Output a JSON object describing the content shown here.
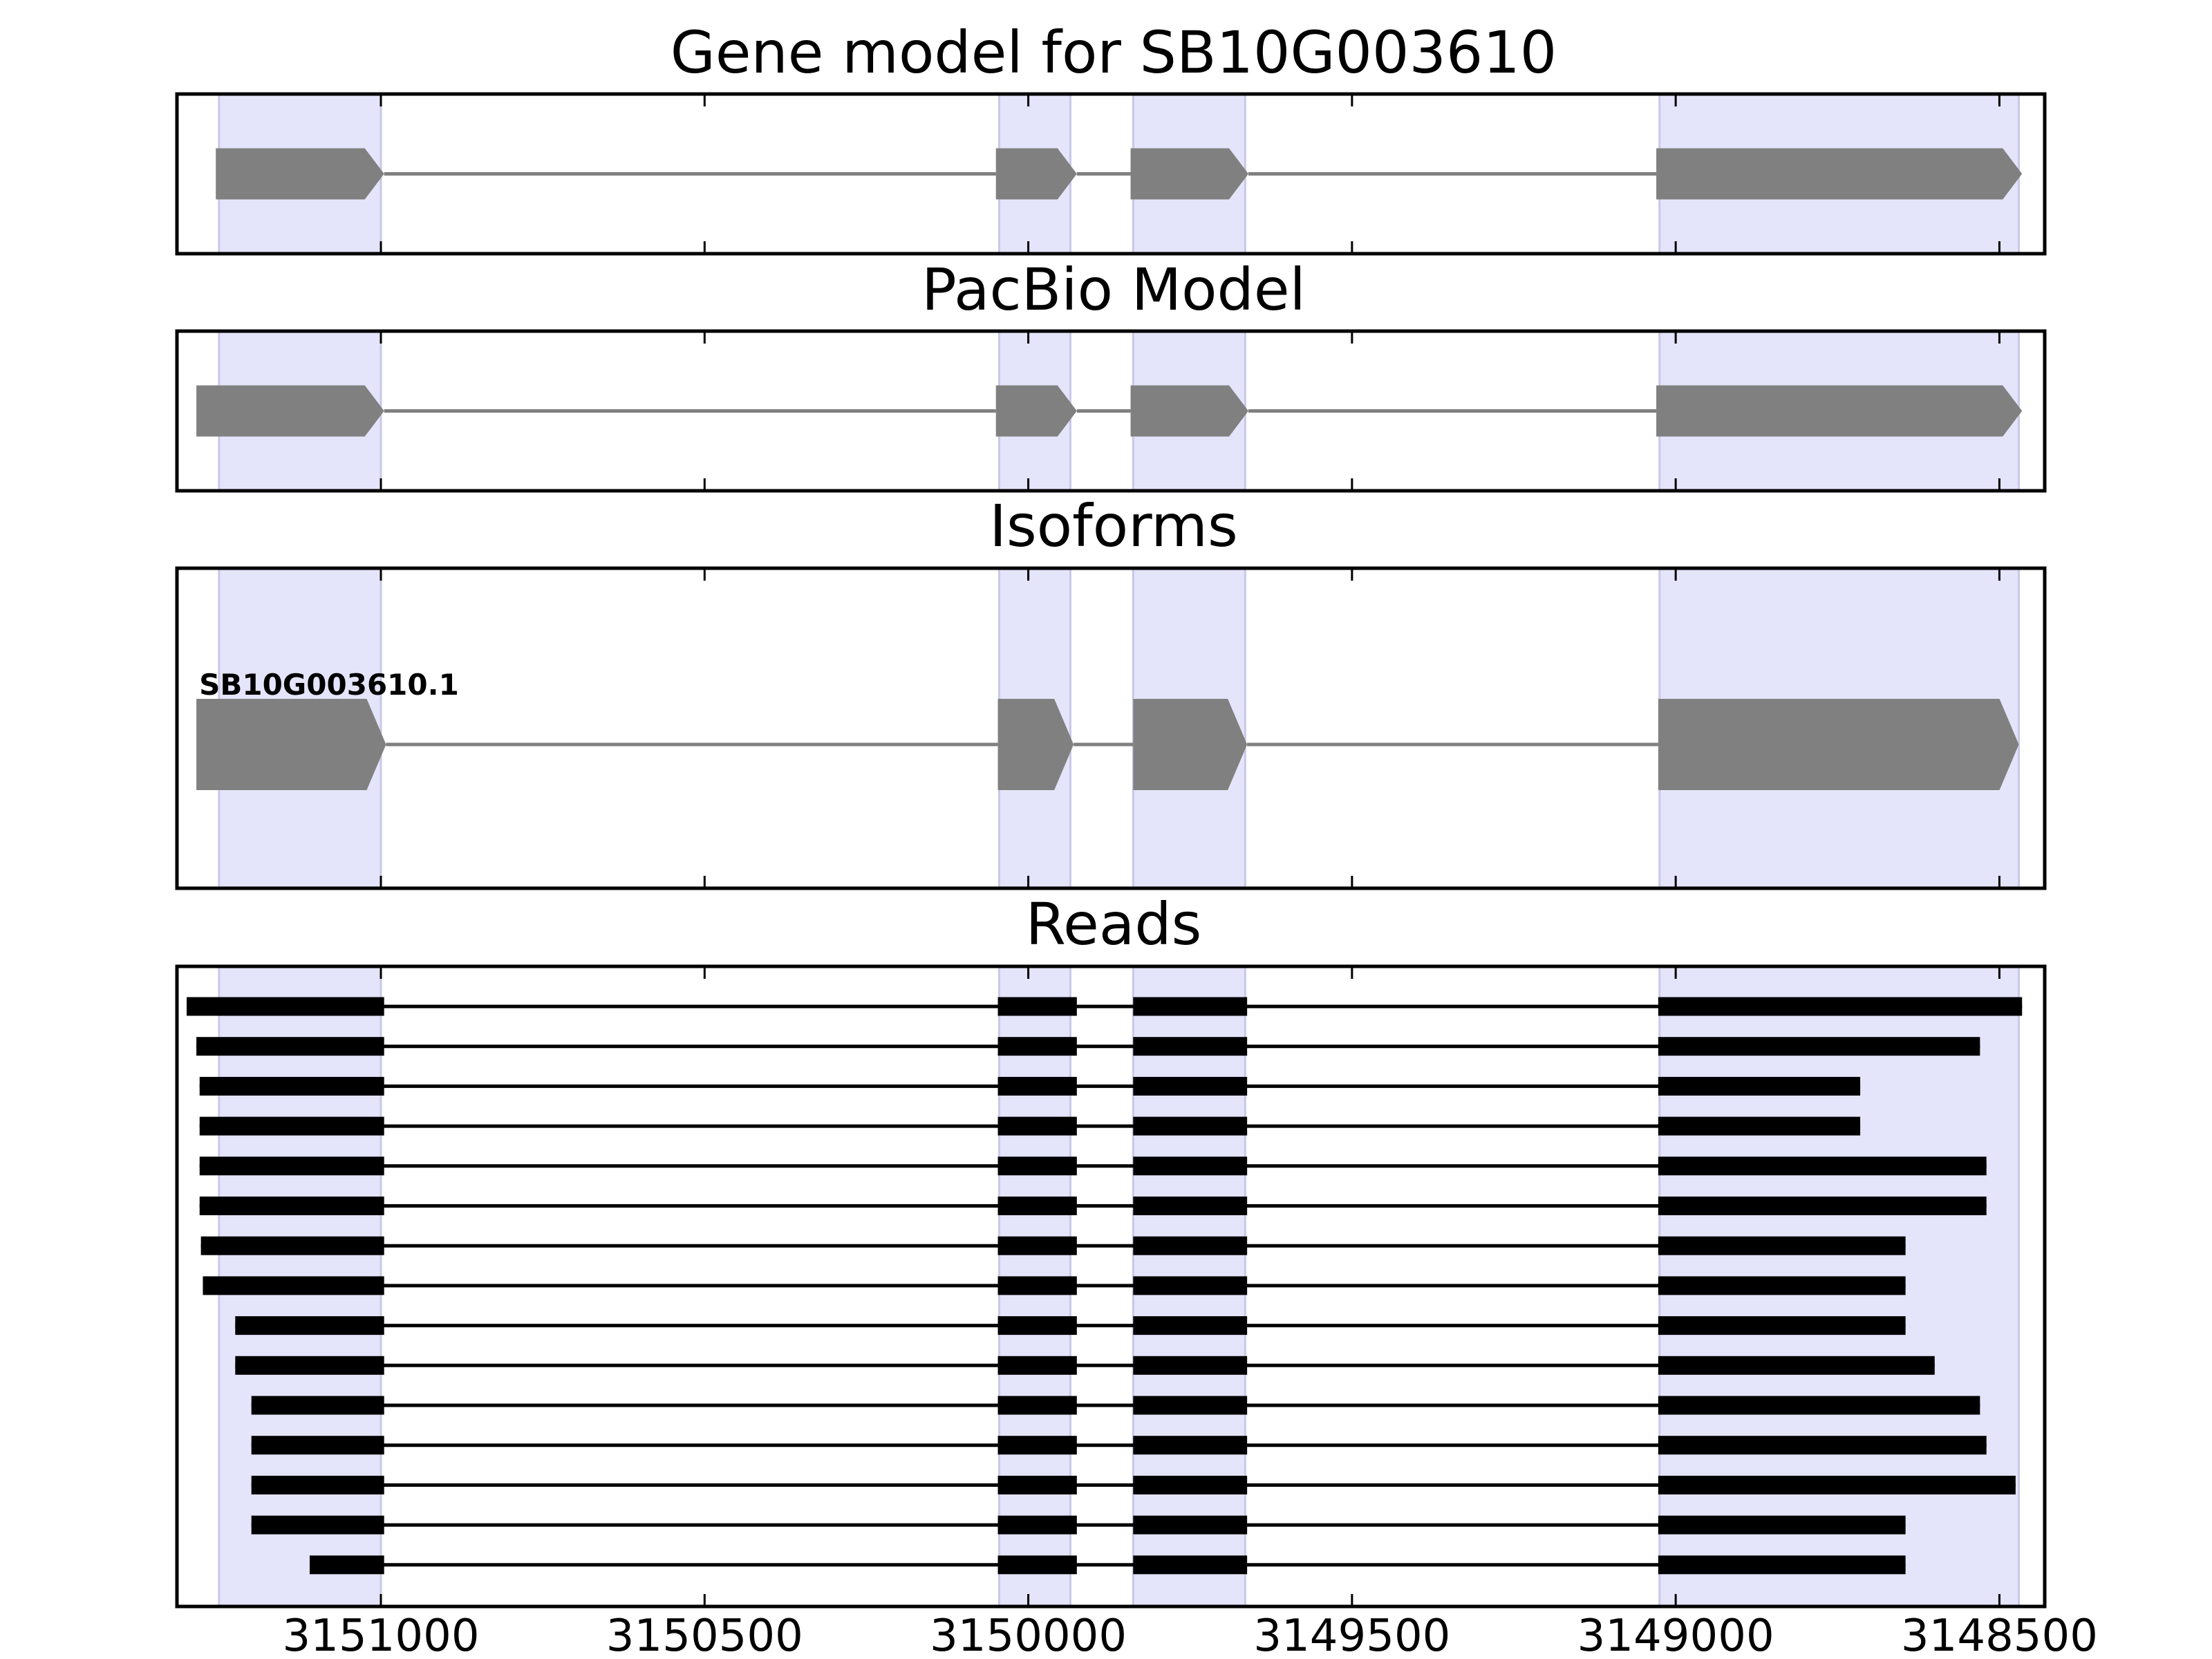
{
  "chart_data": {
    "type": "gene-structure",
    "x_axis": {
      "inverted": true,
      "xlim": [
        3151315,
        3148430
      ],
      "ticks": [
        3151000,
        3150500,
        3150000,
        3149500,
        3149000,
        3148500
      ],
      "tick_labels": [
        "3151000",
        "3150500",
        "3150000",
        "3149500",
        "3149000",
        "3148500"
      ]
    },
    "shaded_exon_regions": [
      [
        3151250,
        3151000
      ],
      [
        3150045,
        3149935
      ],
      [
        3149838,
        3149665
      ],
      [
        3149025,
        3148470
      ]
    ],
    "colors": {
      "shade": "#e4e4fa",
      "shade_edge": "#c8c8ea",
      "feature": "#808080",
      "read": "#000000",
      "intron": "#808080"
    },
    "panels": [
      {
        "title": "Gene model for SB10G003610",
        "kind": "model",
        "models": [
          {
            "label": "",
            "exons": [
              [
                3151255,
                3150995
              ],
              [
                3150050,
                3149925
              ],
              [
                3149842,
                3149660
              ],
              [
                3149030,
                3148465
              ]
            ]
          }
        ]
      },
      {
        "title": "PacBio Model",
        "kind": "model",
        "models": [
          {
            "label": "",
            "exons": [
              [
                3151285,
                3150995
              ],
              [
                3150050,
                3149925
              ],
              [
                3149842,
                3149660
              ],
              [
                3149030,
                3148465
              ]
            ]
          }
        ]
      },
      {
        "title": "Isoforms",
        "kind": "isoform",
        "models": [
          {
            "label": "SB10G003610.1",
            "exons": [
              [
                3151285,
                3150992
              ],
              [
                3150047,
                3149930
              ],
              [
                3149838,
                3149662
              ],
              [
                3149027,
                3148470
              ]
            ]
          }
        ]
      },
      {
        "title": "Reads",
        "kind": "reads",
        "reads": [
          [
            [
              3151300,
              3150995
            ],
            [
              3150047,
              3149925
            ],
            [
              3149838,
              3149662
            ],
            [
              3149027,
              3148465
            ]
          ],
          [
            [
              3151285,
              3150995
            ],
            [
              3150047,
              3149925
            ],
            [
              3149838,
              3149662
            ],
            [
              3149027,
              3148530
            ]
          ],
          [
            [
              3151280,
              3150995
            ],
            [
              3150047,
              3149925
            ],
            [
              3149838,
              3149662
            ],
            [
              3149027,
              3148715
            ]
          ],
          [
            [
              3151280,
              3150995
            ],
            [
              3150047,
              3149925
            ],
            [
              3149838,
              3149662
            ],
            [
              3149027,
              3148715
            ]
          ],
          [
            [
              3151280,
              3150995
            ],
            [
              3150047,
              3149925
            ],
            [
              3149838,
              3149662
            ],
            [
              3149027,
              3148520
            ]
          ],
          [
            [
              3151280,
              3150995
            ],
            [
              3150047,
              3149925
            ],
            [
              3149838,
              3149662
            ],
            [
              3149027,
              3148520
            ]
          ],
          [
            [
              3151278,
              3150995
            ],
            [
              3150047,
              3149925
            ],
            [
              3149838,
              3149662
            ],
            [
              3149027,
              3148645
            ]
          ],
          [
            [
              3151275,
              3150995
            ],
            [
              3150047,
              3149925
            ],
            [
              3149838,
              3149662
            ],
            [
              3149027,
              3148645
            ]
          ],
          [
            [
              3151225,
              3150995
            ],
            [
              3150047,
              3149925
            ],
            [
              3149838,
              3149662
            ],
            [
              3149027,
              3148645
            ]
          ],
          [
            [
              3151225,
              3150995
            ],
            [
              3150047,
              3149925
            ],
            [
              3149838,
              3149662
            ],
            [
              3149027,
              3148600
            ]
          ],
          [
            [
              3151200,
              3150995
            ],
            [
              3150047,
              3149925
            ],
            [
              3149838,
              3149662
            ],
            [
              3149027,
              3148530
            ]
          ],
          [
            [
              3151200,
              3150995
            ],
            [
              3150047,
              3149925
            ],
            [
              3149838,
              3149662
            ],
            [
              3149027,
              3148520
            ]
          ],
          [
            [
              3151200,
              3150995
            ],
            [
              3150047,
              3149925
            ],
            [
              3149838,
              3149662
            ],
            [
              3149027,
              3148475
            ]
          ],
          [
            [
              3151200,
              3150995
            ],
            [
              3150047,
              3149925
            ],
            [
              3149838,
              3149662
            ],
            [
              3149027,
              3148645
            ]
          ],
          [
            [
              3151110,
              3150995
            ],
            [
              3150047,
              3149925
            ],
            [
              3149838,
              3149662
            ],
            [
              3149027,
              3148645
            ]
          ]
        ]
      }
    ]
  }
}
